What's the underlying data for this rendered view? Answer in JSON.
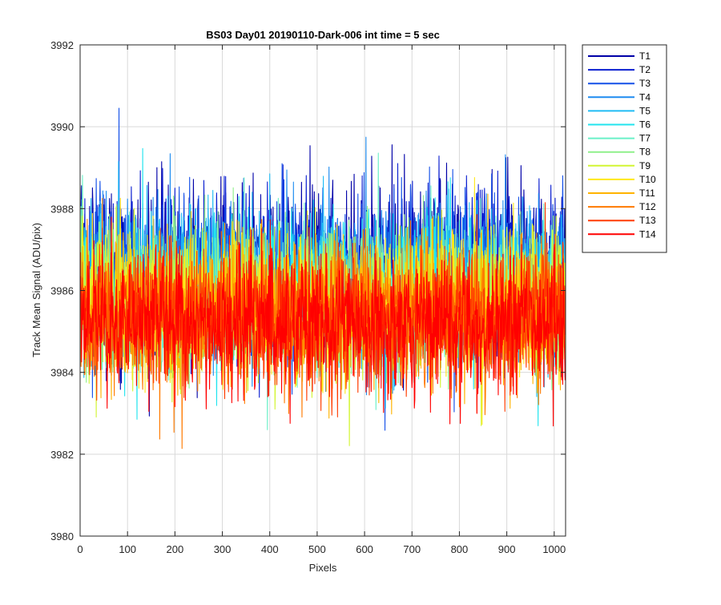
{
  "chart_data": {
    "type": "line",
    "title": "BS03 Day01 20190110-Dark-006 int time = 5 sec",
    "xlabel": "Pixels",
    "ylabel": "Track Mean Signal (ADU/pix)",
    "xlim": [
      0,
      1024
    ],
    "ylim": [
      3980,
      3992
    ],
    "xticks": [
      0,
      100,
      200,
      300,
      400,
      500,
      600,
      700,
      800,
      900,
      1000
    ],
    "yticks": [
      3980,
      3982,
      3984,
      3986,
      3988,
      3990,
      3992
    ],
    "grid": true,
    "legend_position": "outside-top-right",
    "n_points": 1024,
    "series": [
      {
        "name": "T1",
        "color": "#0000a8",
        "mean": 3986.5,
        "spread": 1.2
      },
      {
        "name": "T2",
        "color": "#0a1ed0",
        "mean": 3986.4,
        "spread": 1.15
      },
      {
        "name": "T3",
        "color": "#1450e8",
        "mean": 3986.3,
        "spread": 1.1
      },
      {
        "name": "T4",
        "color": "#1e8cf0",
        "mean": 3986.2,
        "spread": 1.1
      },
      {
        "name": "T5",
        "color": "#20bcf5",
        "mean": 3986.1,
        "spread": 1.05
      },
      {
        "name": "T6",
        "color": "#22e4ee",
        "mean": 3986.0,
        "spread": 1.05
      },
      {
        "name": "T7",
        "color": "#6af0c8",
        "mean": 3985.9,
        "spread": 1.0
      },
      {
        "name": "T8",
        "color": "#8ff08a",
        "mean": 3985.8,
        "spread": 1.0
      },
      {
        "name": "T9",
        "color": "#d2f532",
        "mean": 3985.7,
        "spread": 1.0
      },
      {
        "name": "T10",
        "color": "#ffe81a",
        "mean": 3985.6,
        "spread": 1.0
      },
      {
        "name": "T11",
        "color": "#ffb300",
        "mean": 3985.5,
        "spread": 1.0
      },
      {
        "name": "T12",
        "color": "#ff7a00",
        "mean": 3985.4,
        "spread": 1.0
      },
      {
        "name": "T13",
        "color": "#ff3c00",
        "mean": 3985.3,
        "spread": 1.0
      },
      {
        "name": "T14",
        "color": "#ff0000",
        "mean": 3985.2,
        "spread": 1.0
      }
    ]
  }
}
